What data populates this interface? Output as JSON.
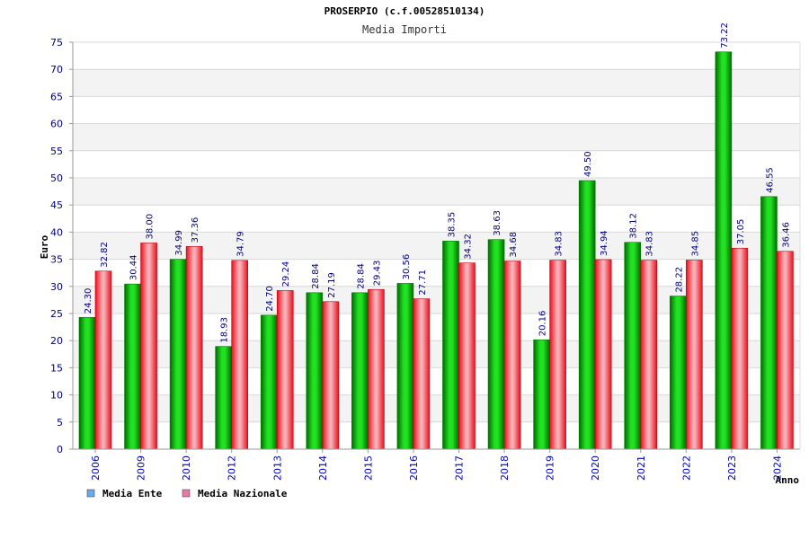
{
  "chart_data": {
    "type": "bar",
    "title": "PROSERPIO (c.f.00528510134)",
    "subtitle": "Media Importi",
    "xlabel": "Anno",
    "ylabel": "Euro",
    "ylim": [
      0,
      75
    ],
    "yticks": [
      0,
      5,
      10,
      15,
      20,
      25,
      30,
      35,
      40,
      45,
      50,
      55,
      60,
      65,
      70,
      75
    ],
    "categories": [
      "2006",
      "2009",
      "2010",
      "2012",
      "2013",
      "2014",
      "2015",
      "2016",
      "2017",
      "2018",
      "2019",
      "2020",
      "2021",
      "2022",
      "2023",
      "2024"
    ],
    "series": [
      {
        "name": "Media Ente",
        "values": [
          24.3,
          30.44,
          34.99,
          18.93,
          24.7,
          28.84,
          28.84,
          30.56,
          38.35,
          38.63,
          20.16,
          49.5,
          38.12,
          28.22,
          73.22,
          46.55
        ],
        "labels": [
          "24.30",
          "30.44",
          "34.99",
          "18.93",
          "24.70",
          "28.84",
          "28.84",
          "30.56",
          "38.35",
          "38.63",
          "20.16",
          "49.50",
          "38.12",
          "28.22",
          "73.22",
          "46.55"
        ],
        "color": "#00aa00",
        "legend_color": "#6aa9ee"
      },
      {
        "name": "Media Nazionale",
        "values": [
          32.82,
          38.0,
          37.36,
          34.79,
          29.24,
          27.19,
          29.43,
          27.71,
          34.32,
          34.68,
          34.83,
          34.94,
          34.83,
          34.85,
          37.05,
          36.46
        ],
        "labels": [
          "32.82",
          "38.00",
          "37.36",
          "34.79",
          "29.24",
          "27.19",
          "29.43",
          "27.71",
          "34.32",
          "34.68",
          "34.83",
          "34.94",
          "34.83",
          "34.85",
          "37.05",
          "36.46"
        ],
        "color": "#e8202a",
        "legend_color": "#e87aa8"
      }
    ],
    "grid": true,
    "legend": "bottom-left"
  }
}
